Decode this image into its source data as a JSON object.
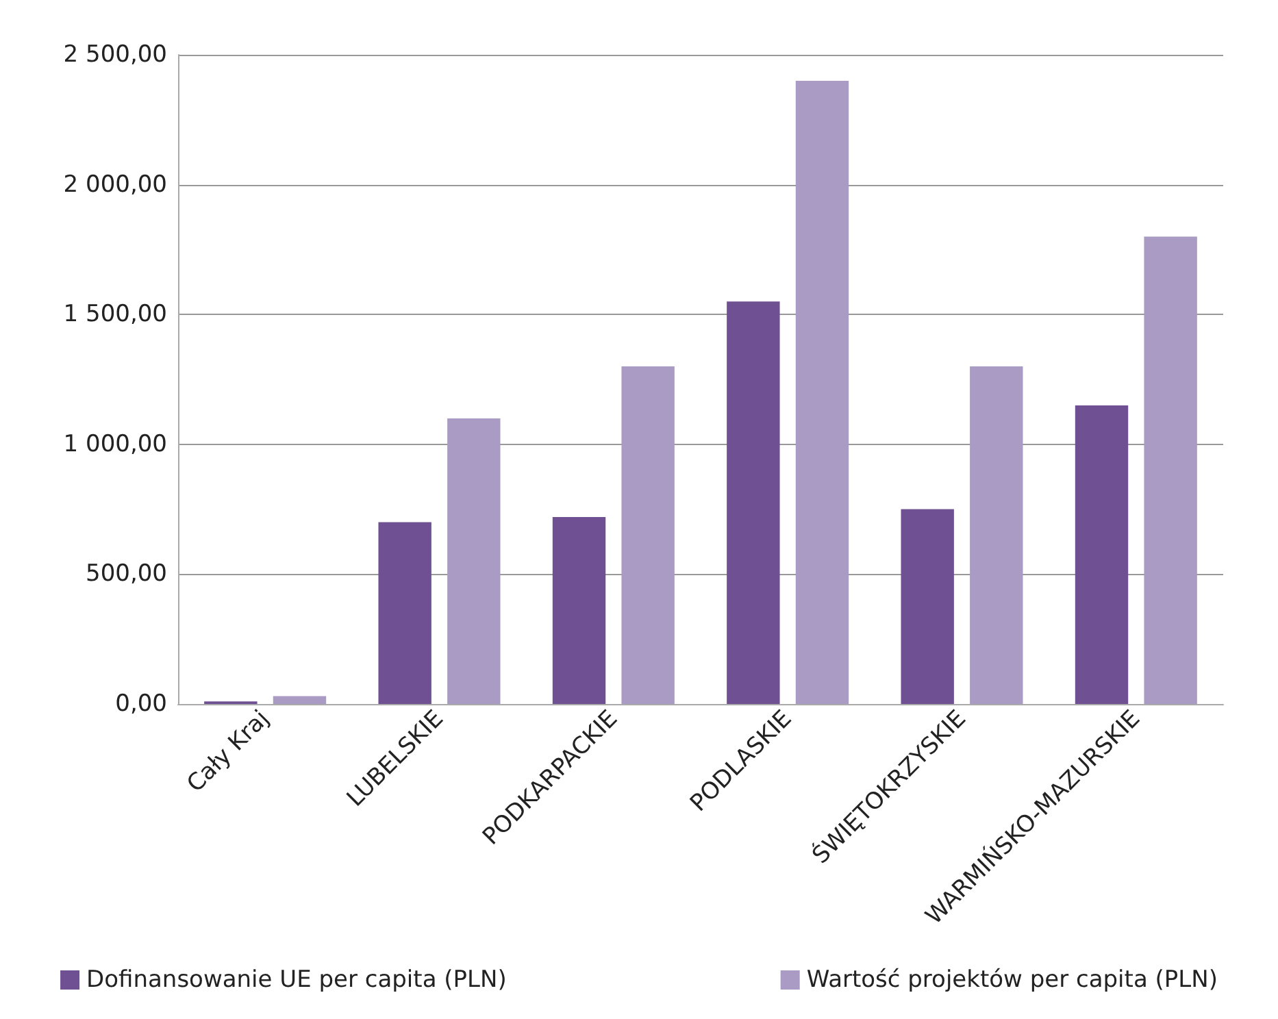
{
  "chart_data": {
    "type": "bar",
    "categories": [
      "Cały Kraj",
      "LUBELSKIE",
      "PODKARPACKIE",
      "PODLASKIE",
      "ŚWIĘTOKRZYSKIE",
      "WARMIŃSKO-MAZURSKIE"
    ],
    "series": [
      {
        "name": "Dofinansowanie UE per capita (PLN)",
        "color": "#6f5193",
        "values": [
          10,
          700,
          720,
          1550,
          750,
          1150
        ]
      },
      {
        "name": "Wartość projektów per capita (PLN)",
        "color": "#a99bc3",
        "values": [
          30,
          1100,
          1300,
          2400,
          1300,
          1800
        ]
      }
    ],
    "ylim": [
      0,
      2500
    ],
    "yticks": [
      {
        "value": 0,
        "label": "0,00"
      },
      {
        "value": 500,
        "label": "500,00"
      },
      {
        "value": 1000,
        "label": "1 000,00"
      },
      {
        "value": 1500,
        "label": "1 500,00"
      },
      {
        "value": 2000,
        "label": "2 000,00"
      },
      {
        "value": 2500,
        "label": "2 500,00"
      }
    ],
    "grid": "y",
    "legend": "bottom"
  }
}
